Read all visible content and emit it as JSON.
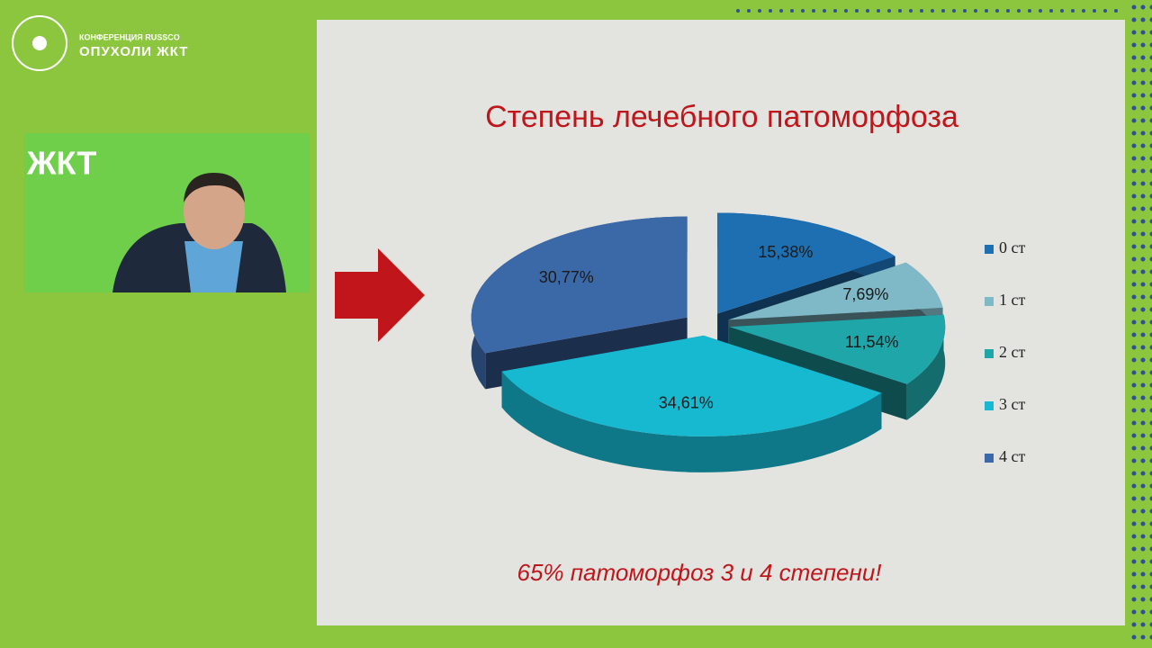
{
  "header": {
    "org": "КОНФЕРЕНЦИЯ RUSSCO",
    "event": "ОПУХОЛИ ЖКТ",
    "video_caption": "ЖКТ"
  },
  "chart_data": {
    "type": "pie3d",
    "title": "Степень лечебного патоморфоза",
    "categories": [
      "0 ст",
      "1 ст",
      "2 ст",
      "3 ст",
      "4 ст"
    ],
    "values": [
      15.38,
      7.69,
      11.54,
      34.61,
      30.77
    ],
    "value_labels": [
      "15,38%",
      "7,69%",
      "11,54%",
      "34,61%",
      "30,77%"
    ],
    "colors": [
      "#1e6fb2",
      "#7fb8c6",
      "#1ea6a8",
      "#17b9d1",
      "#3b69a8"
    ],
    "legend": "right",
    "annotation": "65% патоморфоз 3 и 4 степени!"
  }
}
